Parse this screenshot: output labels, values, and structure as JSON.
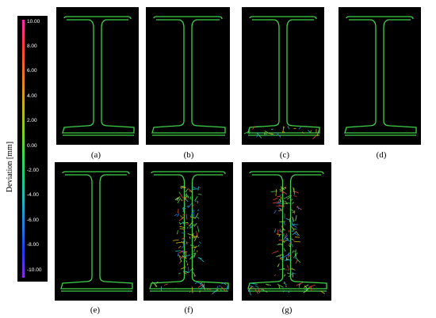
{
  "legend": {
    "title": "Deviation [mm]",
    "ticks": [
      "10.00",
      "8.00",
      "6.00",
      "4.00",
      "2.00",
      "0.00",
      "-2.00",
      "-4.00",
      "-6.00",
      "-8.00",
      "-10.00"
    ]
  },
  "panels": [
    {
      "label": "(a)",
      "noise": "none"
    },
    {
      "label": "(b)",
      "noise": "none"
    },
    {
      "label": "(c)",
      "noise": "low"
    },
    {
      "label": "(d)",
      "noise": "none"
    },
    {
      "label": "(e)",
      "noise": "none"
    },
    {
      "label": "(f)",
      "noise": "high"
    },
    {
      "label": "(g)",
      "noise": "high"
    }
  ],
  "colors": {
    "background": "#000000",
    "profile": "#3fd04a"
  }
}
